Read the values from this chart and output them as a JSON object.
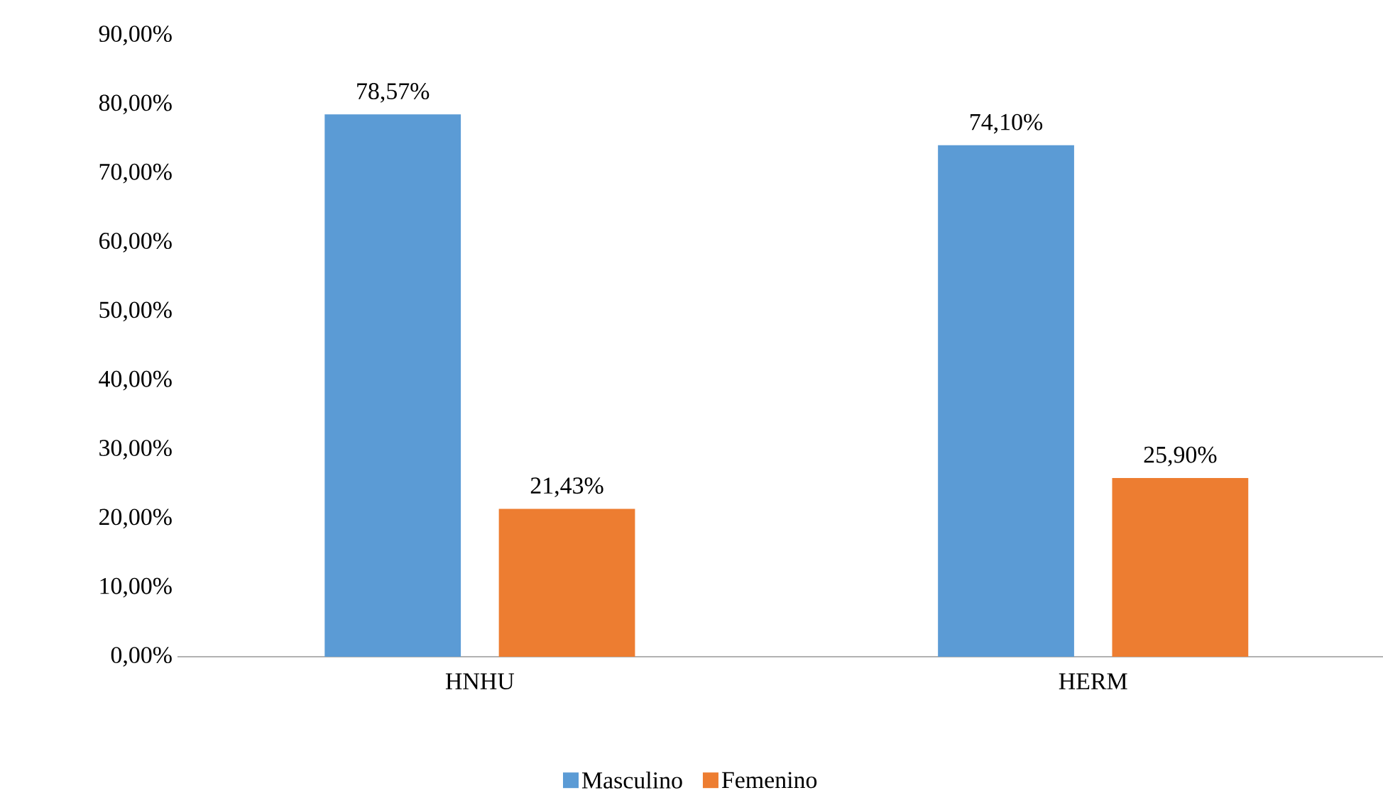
{
  "chart_data": {
    "type": "bar",
    "categories": [
      "HNHU",
      "HERM"
    ],
    "series": [
      {
        "name": "Masculino",
        "color": "#5b9bd5",
        "values": [
          78.57,
          74.1
        ],
        "value_labels": [
          "78,57%",
          "74,10%"
        ]
      },
      {
        "name": "Femenino",
        "color": "#ed7d31",
        "values": [
          21.43,
          25.9
        ],
        "value_labels": [
          "21,43%",
          "25,90%"
        ]
      }
    ],
    "ylim": [
      0,
      90
    ],
    "yticks": [
      {
        "value": 0,
        "label": "0,00%"
      },
      {
        "value": 10,
        "label": "10,00%"
      },
      {
        "value": 20,
        "label": "20,00%"
      },
      {
        "value": 30,
        "label": "30,00%"
      },
      {
        "value": 40,
        "label": "40,00%"
      },
      {
        "value": 50,
        "label": "50,00%"
      },
      {
        "value": 60,
        "label": "60,00%"
      },
      {
        "value": 70,
        "label": "70,00%"
      },
      {
        "value": 80,
        "label": "80,00%"
      },
      {
        "value": 90,
        "label": "90,00%"
      }
    ],
    "grid": false,
    "legend": "bottom"
  }
}
